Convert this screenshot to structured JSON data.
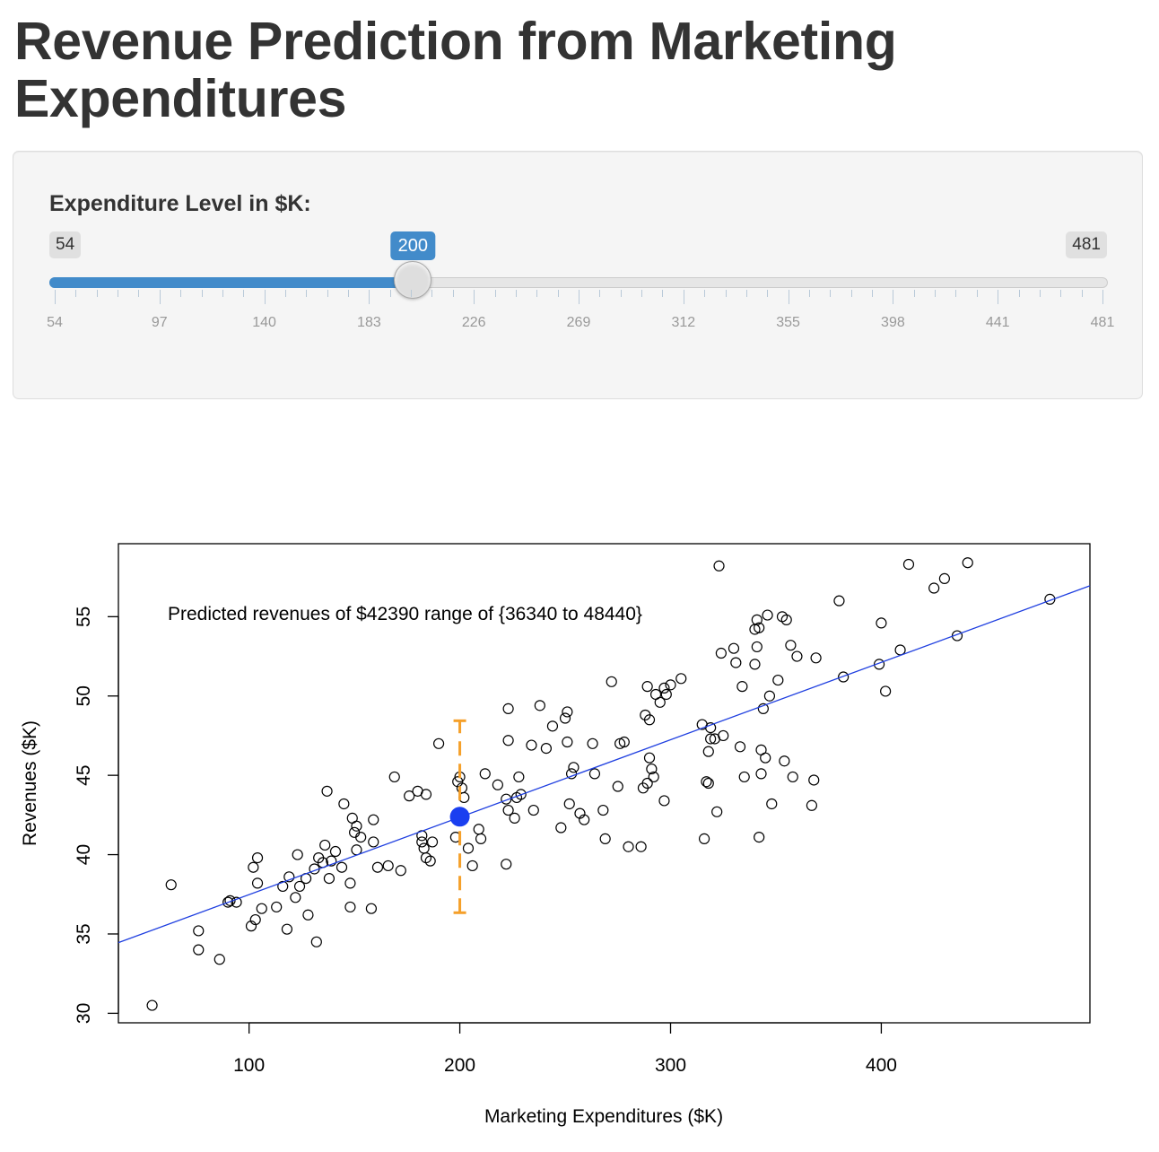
{
  "page": {
    "title": "Revenue Prediction from Marketing Expenditures"
  },
  "slider": {
    "label": "Expenditure Level in $K:",
    "min": 54,
    "max": 481,
    "value": 200,
    "min_label": "54",
    "max_label": "481",
    "value_label": "200",
    "grid_labels": [
      "54",
      "97",
      "140",
      "183",
      "226",
      "269",
      "312",
      "355",
      "398",
      "441",
      "481"
    ],
    "accent_color": "#428bca"
  },
  "chart_data": {
    "type": "scatter",
    "title": "",
    "xlabel": "Marketing Expenditures ($K)",
    "ylabel": "Revenues ($K)",
    "xlim": [
      38,
      499
    ],
    "ylim": [
      29.4,
      59.6
    ],
    "xticks": [
      100,
      200,
      300,
      400
    ],
    "yticks": [
      30,
      35,
      40,
      45,
      50,
      55
    ],
    "annotation": "Predicted revenues of $42390 range of {36340 to 48440}",
    "regression_line": {
      "intercept": 32.6,
      "slope": 0.0488,
      "color": "#1f3fe0"
    },
    "prediction": {
      "x": 200,
      "y": 42.39,
      "lower": 36.34,
      "upper": 48.44,
      "point_color": "#1a3ff0",
      "interval_color": "#f5a02a"
    },
    "points": [
      [
        54,
        30.5
      ],
      [
        63,
        38.1
      ],
      [
        76,
        35.2
      ],
      [
        76,
        34.0
      ],
      [
        86,
        33.4
      ],
      [
        90,
        37.0
      ],
      [
        91,
        37.1
      ],
      [
        94,
        37.0
      ],
      [
        101,
        35.5
      ],
      [
        102,
        39.2
      ],
      [
        103,
        35.9
      ],
      [
        104,
        38.2
      ],
      [
        104,
        39.8
      ],
      [
        106,
        36.6
      ],
      [
        113,
        36.7
      ],
      [
        116,
        38.0
      ],
      [
        118,
        35.3
      ],
      [
        119,
        38.6
      ],
      [
        122,
        37.3
      ],
      [
        123,
        40.0
      ],
      [
        124,
        38.0
      ],
      [
        127,
        38.5
      ],
      [
        128,
        36.2
      ],
      [
        131,
        39.1
      ],
      [
        132,
        34.5
      ],
      [
        133,
        39.8
      ],
      [
        135,
        39.5
      ],
      [
        136,
        40.6
      ],
      [
        137,
        44.0
      ],
      [
        138,
        38.5
      ],
      [
        139,
        39.6
      ],
      [
        141,
        40.2
      ],
      [
        144,
        39.2
      ],
      [
        145,
        43.2
      ],
      [
        148,
        36.7
      ],
      [
        148,
        38.2
      ],
      [
        149,
        42.3
      ],
      [
        150,
        41.4
      ],
      [
        151,
        41.8
      ],
      [
        151,
        40.3
      ],
      [
        153,
        41.1
      ],
      [
        158,
        36.6
      ],
      [
        159,
        42.2
      ],
      [
        159,
        40.8
      ],
      [
        161,
        39.2
      ],
      [
        166,
        39.3
      ],
      [
        169,
        44.9
      ],
      [
        172,
        39.0
      ],
      [
        176,
        43.7
      ],
      [
        180,
        44.0
      ],
      [
        182,
        41.2
      ],
      [
        182,
        40.8
      ],
      [
        183,
        40.4
      ],
      [
        184,
        43.8
      ],
      [
        184,
        39.8
      ],
      [
        186,
        39.6
      ],
      [
        187,
        40.8
      ],
      [
        190,
        47.0
      ],
      [
        198,
        41.1
      ],
      [
        199,
        44.6
      ],
      [
        200,
        44.9
      ],
      [
        201,
        44.2
      ],
      [
        202,
        43.6
      ],
      [
        204,
        40.4
      ],
      [
        206,
        39.3
      ],
      [
        209,
        41.6
      ],
      [
        210,
        41.0
      ],
      [
        212,
        45.1
      ],
      [
        218,
        44.4
      ],
      [
        222,
        43.5
      ],
      [
        222,
        39.4
      ],
      [
        223,
        49.2
      ],
      [
        223,
        42.8
      ],
      [
        223,
        47.2
      ],
      [
        226,
        42.3
      ],
      [
        227,
        43.6
      ],
      [
        228,
        44.9
      ],
      [
        229,
        43.8
      ],
      [
        234,
        46.9
      ],
      [
        235,
        42.8
      ],
      [
        238,
        49.4
      ],
      [
        241,
        46.7
      ],
      [
        244,
        48.1
      ],
      [
        248,
        41.7
      ],
      [
        250,
        48.6
      ],
      [
        251,
        49.0
      ],
      [
        251,
        47.1
      ],
      [
        252,
        43.2
      ],
      [
        253,
        45.1
      ],
      [
        254,
        45.5
      ],
      [
        257,
        42.6
      ],
      [
        259,
        42.2
      ],
      [
        263,
        47.0
      ],
      [
        264,
        45.1
      ],
      [
        268,
        42.8
      ],
      [
        269,
        41.0
      ],
      [
        272,
        50.9
      ],
      [
        275,
        44.3
      ],
      [
        276,
        47.0
      ],
      [
        278,
        47.1
      ],
      [
        280,
        40.5
      ],
      [
        286,
        40.5
      ],
      [
        287,
        44.2
      ],
      [
        288,
        48.8
      ],
      [
        289,
        44.5
      ],
      [
        289,
        50.6
      ],
      [
        290,
        46.1
      ],
      [
        290,
        48.5
      ],
      [
        291,
        45.4
      ],
      [
        292,
        44.9
      ],
      [
        293,
        50.1
      ],
      [
        295,
        49.6
      ],
      [
        297,
        43.4
      ],
      [
        297,
        50.5
      ],
      [
        298,
        50.1
      ],
      [
        300,
        50.7
      ],
      [
        305,
        51.1
      ],
      [
        315,
        48.2
      ],
      [
        316,
        41.0
      ],
      [
        317,
        44.6
      ],
      [
        318,
        44.5
      ],
      [
        318,
        46.5
      ],
      [
        319,
        47.3
      ],
      [
        319,
        48.0
      ],
      [
        321,
        47.3
      ],
      [
        322,
        42.7
      ],
      [
        323,
        58.2
      ],
      [
        324,
        52.7
      ],
      [
        325,
        47.5
      ],
      [
        330,
        53.0
      ],
      [
        331,
        52.1
      ],
      [
        333,
        46.8
      ],
      [
        334,
        50.6
      ],
      [
        335,
        44.9
      ],
      [
        340,
        52.0
      ],
      [
        340,
        54.2
      ],
      [
        341,
        53.1
      ],
      [
        341,
        54.8
      ],
      [
        342,
        41.1
      ],
      [
        342,
        54.3
      ],
      [
        343,
        45.1
      ],
      [
        343,
        46.6
      ],
      [
        344,
        49.2
      ],
      [
        345,
        46.1
      ],
      [
        346,
        55.1
      ],
      [
        347,
        50.0
      ],
      [
        348,
        43.2
      ],
      [
        351,
        51.0
      ],
      [
        353,
        55.0
      ],
      [
        354,
        45.9
      ],
      [
        355,
        54.8
      ],
      [
        357,
        53.2
      ],
      [
        358,
        44.9
      ],
      [
        360,
        52.5
      ],
      [
        367,
        43.1
      ],
      [
        368,
        44.7
      ],
      [
        369,
        52.4
      ],
      [
        380,
        56.0
      ],
      [
        382,
        51.2
      ],
      [
        399,
        52.0
      ],
      [
        400,
        54.6
      ],
      [
        402,
        50.3
      ],
      [
        409,
        52.9
      ],
      [
        413,
        58.3
      ],
      [
        425,
        56.8
      ],
      [
        430,
        57.4
      ],
      [
        436,
        53.8
      ],
      [
        441,
        58.4
      ],
      [
        480,
        56.1
      ]
    ]
  }
}
